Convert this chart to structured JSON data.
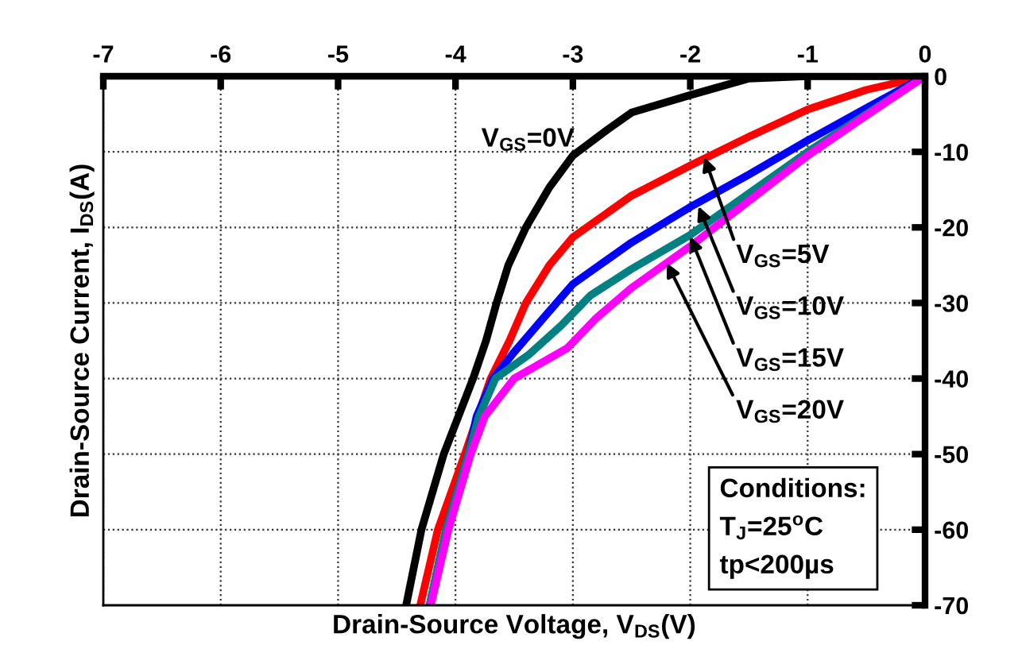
{
  "chart_data": {
    "type": "line",
    "xlabel": "Drain-Source Voltage, V$_{DS}$(V)",
    "ylabel": "Drain-Source Current, I$_{DS}$(A)",
    "xlim": [
      -7,
      0
    ],
    "xticks": [
      -7,
      -6,
      -5,
      -4,
      -3,
      -2,
      -1,
      0
    ],
    "ylim": [
      -70,
      0
    ],
    "yticks": [
      -70,
      -60,
      -50,
      -40,
      -30,
      -20,
      -10,
      0
    ],
    "grid": true,
    "line_style": "solid",
    "marker": "none",
    "series": [
      {
        "color": "#000000",
        "x": [
          0,
          -0.5,
          -1,
          -1.5,
          -2,
          -2.5,
          -2.7,
          -3,
          -3.2,
          -3.4,
          -3.55,
          -3.65,
          -3.74,
          -3.85,
          -4.1,
          -4.29,
          -4.42
        ],
        "values": [
          0,
          0,
          0,
          -0.3,
          -2.5,
          -4.8,
          -7,
          -10.5,
          -14.7,
          -20,
          -25,
          -30,
          -35,
          -40,
          -50,
          -60,
          -70
        ]
      },
      {
        "color": "#ff0000",
        "x": [
          0,
          -0.5,
          -1,
          -1.5,
          -2,
          -2.5,
          -3,
          -3.2,
          -3.4,
          -3.54,
          -3.7,
          -3.92,
          -4.15,
          -4.3
        ],
        "values": [
          0,
          -1.8,
          -4.4,
          -8,
          -11.8,
          -15.8,
          -21.3,
          -25,
          -30,
          -35,
          -40,
          -50,
          -60,
          -70
        ]
      },
      {
        "color": "#0000ff",
        "x": [
          0,
          -0.5,
          -1,
          -1.5,
          -2,
          -2.5,
          -3,
          -3.24,
          -3.5,
          -3.68,
          -3.82,
          -3.89,
          -4.08,
          -4.22
        ],
        "values": [
          0,
          -4.2,
          -8.5,
          -13,
          -17.3,
          -22,
          -27.5,
          -31.8,
          -36.5,
          -40,
          -45,
          -50,
          -60,
          -70
        ]
      },
      {
        "color": "#008080",
        "x": [
          0,
          -0.5,
          -1,
          -1.5,
          -2,
          -2.5,
          -2.85,
          -3.1,
          -3.38,
          -3.66,
          -3.8,
          -3.89,
          -4.08,
          -4.22
        ],
        "values": [
          0,
          -5,
          -10,
          -15.5,
          -21,
          -25.5,
          -29,
          -33,
          -36.9,
          -40,
          -45,
          -50,
          -60,
          -70
        ]
      },
      {
        "color": "#ff00ff",
        "x": [
          0,
          -0.5,
          -1,
          -1.5,
          -2,
          -2.5,
          -2.8,
          -3.05,
          -3.5,
          -3.75,
          -3.87,
          -4.06,
          -4.21
        ],
        "values": [
          0,
          -5.2,
          -10.5,
          -16.5,
          -22.5,
          -28,
          -32,
          -36,
          -40,
          -45,
          -50,
          -60,
          -70
        ]
      }
    ],
    "annotations": [
      "V$_{GS}$=0V",
      {
        "text": "V$_{GS}$=5V",
        "x": -1.88,
        "y": -10.7
      },
      {
        "text": "V$_{GS}$=10V",
        "x": -1.93,
        "y": -17.2
      },
      {
        "text": "V$_{GS}$=15V",
        "x": -2.0,
        "y": -21.2
      },
      {
        "text": "V$_{GS}$=20V",
        "x": -2.2,
        "y": -24.7
      },
      "Conditions:\nT$_{J}$=25$^{o}$C\ntp<200µs"
    ]
  }
}
